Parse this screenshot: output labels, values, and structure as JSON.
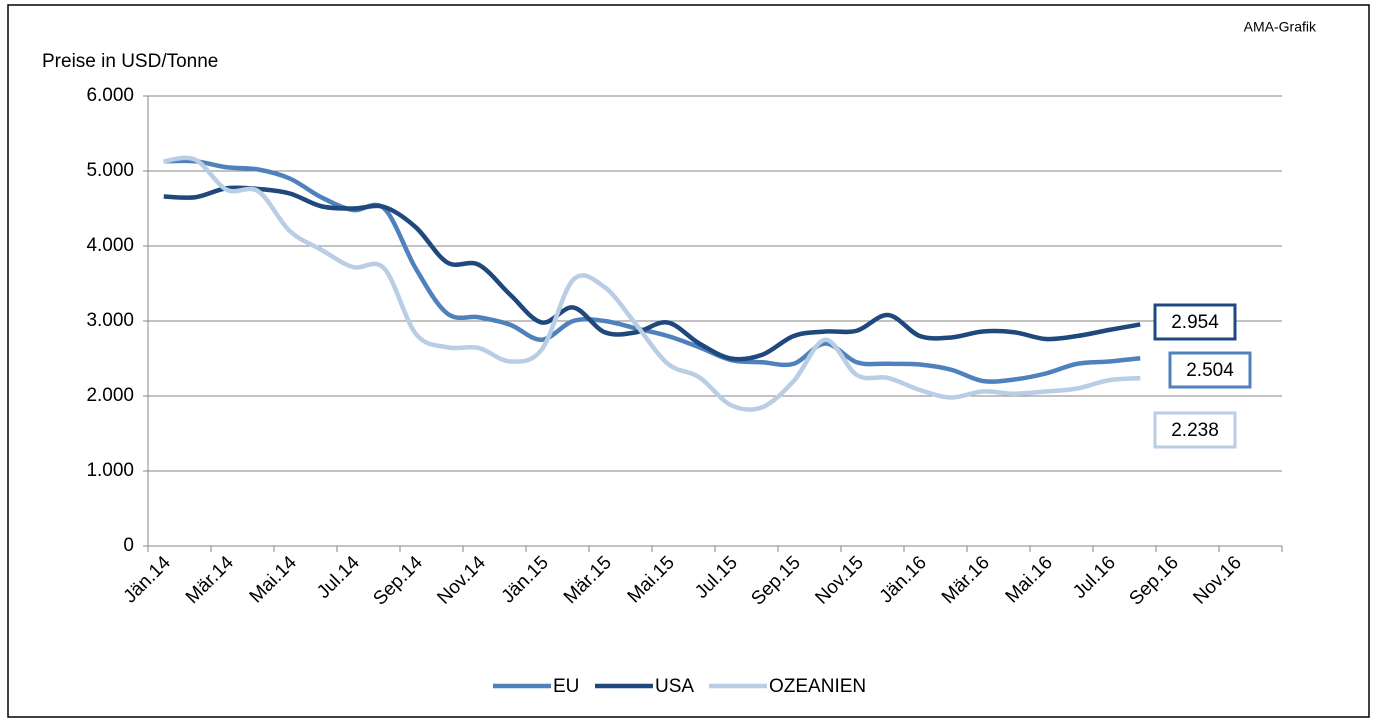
{
  "chart_data": {
    "type": "line",
    "y_label": "Preise in USD/Tonne",
    "source": "AMA-Grafik",
    "categories": [
      "Jän.14",
      null,
      "Mär.14",
      null,
      "Mai.14",
      null,
      "Jul.14",
      null,
      "Sep.14",
      null,
      "Nov.14",
      null,
      "Jän.15",
      null,
      "Mär.15",
      null,
      "Mai.15",
      null,
      "Jul.15",
      null,
      "Sep.15",
      null,
      "Nov.15",
      null,
      "Jän.16",
      null,
      "Mär.16",
      null,
      "Mai.16",
      null,
      "Jul.16",
      null,
      "Sep.16",
      null,
      "Nov.16",
      null
    ],
    "series": [
      {
        "name": "EU",
        "color": "#4f81bd",
        "values": [
          5130,
          5130,
          5050,
          5020,
          4900,
          4650,
          4480,
          4500,
          3700,
          3100,
          3050,
          2950,
          2750,
          3000,
          3000,
          2900,
          2800,
          2650,
          2480,
          2450,
          2430,
          2700,
          2450,
          2430,
          2420,
          2350,
          2200,
          2220,
          2300,
          2430,
          2460,
          2504,
          null,
          null,
          null,
          null
        ],
        "value_labels": [
          null,
          null,
          null,
          null,
          null,
          null,
          null,
          null,
          null,
          null,
          null,
          null,
          null,
          null,
          null,
          null,
          null,
          null,
          null,
          null,
          null,
          null,
          null,
          null,
          null,
          null,
          null,
          null,
          null,
          null,
          null,
          "2.504",
          null,
          null,
          null,
          null
        ]
      },
      {
        "name": "USA",
        "color": "#1f497d",
        "values": [
          4660,
          4650,
          4770,
          4760,
          4700,
          4530,
          4500,
          4520,
          4250,
          3780,
          3750,
          3350,
          2980,
          3180,
          2850,
          2850,
          2980,
          2700,
          2500,
          2550,
          2800,
          2860,
          2870,
          3080,
          2800,
          2780,
          2860,
          2850,
          2760,
          2800,
          2880,
          2954,
          null,
          null,
          null,
          null
        ],
        "value_labels": [
          null,
          null,
          null,
          null,
          null,
          null,
          null,
          null,
          null,
          null,
          null,
          null,
          null,
          null,
          null,
          null,
          null,
          null,
          null,
          null,
          null,
          null,
          null,
          null,
          null,
          null,
          null,
          null,
          null,
          null,
          null,
          "2.954",
          null,
          null,
          null,
          null
        ]
      },
      {
        "name": "OZEANIEN",
        "color": "#b9cde5",
        "values": [
          5130,
          5150,
          4750,
          4730,
          4200,
          3950,
          3720,
          3700,
          2830,
          2650,
          2640,
          2460,
          2620,
          3550,
          3450,
          2950,
          2430,
          2250,
          1880,
          1850,
          2200,
          2750,
          2280,
          2240,
          2080,
          1980,
          2060,
          2030,
          2060,
          2100,
          2210,
          2238,
          null,
          null,
          null,
          null
        ],
        "value_labels": [
          null,
          null,
          null,
          null,
          null,
          null,
          null,
          null,
          null,
          null,
          null,
          null,
          null,
          null,
          null,
          null,
          null,
          null,
          null,
          null,
          null,
          null,
          null,
          null,
          null,
          null,
          null,
          null,
          null,
          null,
          null,
          "2.238",
          null,
          null,
          null,
          null
        ]
      }
    ],
    "ylim": [
      0,
      6000
    ],
    "yticks": [
      0,
      {
        "value": 1000,
        "label": "1.000"
      },
      {
        "value": 2000,
        "label": "2.000"
      },
      {
        "value": 3000,
        "label": "3.000"
      },
      {
        "value": 4000,
        "label": "4.000"
      },
      {
        "value": 5000,
        "label": "5.000"
      },
      {
        "value": 6000,
        "label": "6.000"
      }
    ],
    "grid": true,
    "smooth": true,
    "legend": "bottom"
  }
}
